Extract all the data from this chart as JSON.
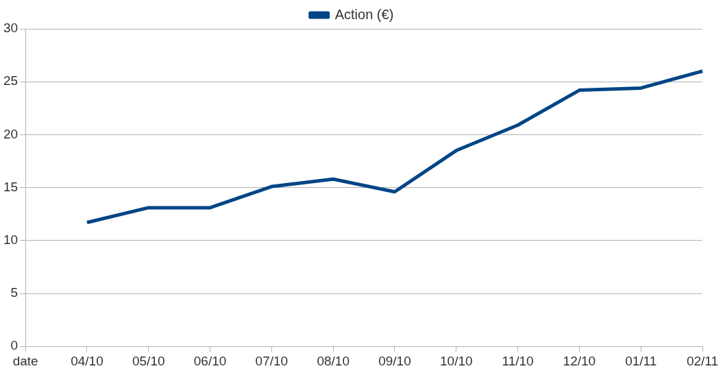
{
  "chart_data": {
    "type": "line",
    "categories": [
      "date",
      "04/10",
      "05/10",
      "06/10",
      "07/10",
      "08/10",
      "09/10",
      "10/10",
      "11/10",
      "12/10",
      "01/11",
      "02/11"
    ],
    "series": [
      {
        "name": "Action (€)",
        "color": "#004586",
        "values": [
          null,
          11.7,
          13.1,
          13.1,
          15.1,
          15.8,
          14.6,
          18.5,
          20.9,
          24.2,
          24.4,
          26.0
        ]
      }
    ],
    "ylim": [
      0,
      30
    ],
    "yticks": [
      0,
      5,
      10,
      15,
      20,
      25,
      30
    ],
    "grid": "y",
    "legend": "top",
    "marker": "none",
    "line_style": "solid"
  }
}
